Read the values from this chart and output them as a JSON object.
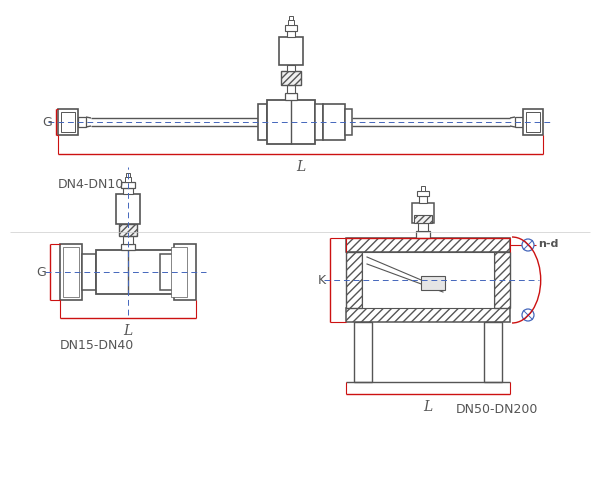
{
  "bg_color": "#ffffff",
  "lc": "#555555",
  "rc": "#cc1111",
  "bc": "#4466bb",
  "fig_w": 6.0,
  "fig_h": 4.81,
  "dpi": 100,
  "labels": {
    "DN4": "DN4-DN10",
    "DN15": "DN15-DN40",
    "DN50": "DN50-DN200",
    "L": "L",
    "G": "G",
    "K": "K",
    "nd": "n-d"
  }
}
